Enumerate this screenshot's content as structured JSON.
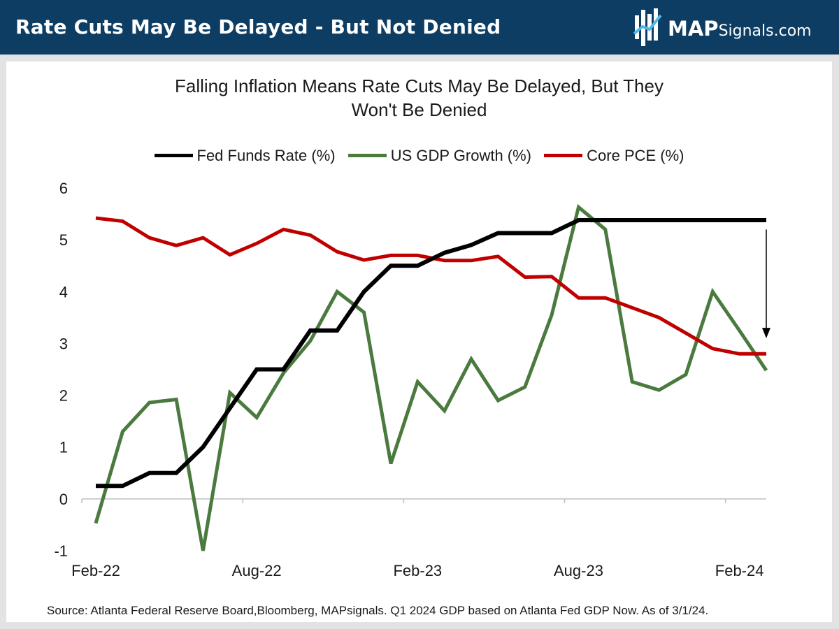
{
  "header": {
    "title": "Rate Cuts May Be Delayed - But Not Denied",
    "logo_bold": "MAP",
    "logo_rest": "Signals.com"
  },
  "chart_data": {
    "type": "line",
    "title": "Falling Inflation Means Rate Cuts May Be Delayed, But They Won't Be Denied",
    "title_lines": [
      "Falling Inflation Means Rate Cuts May Be Delayed, But They",
      "Won't Be Denied"
    ],
    "legend": "top-center",
    "x": [
      "Feb-22",
      "Mar-22",
      "Apr-22",
      "May-22",
      "Jun-22",
      "Jul-22",
      "Aug-22",
      "Sep-22",
      "Oct-22",
      "Nov-22",
      "Dec-22",
      "Jan-23",
      "Feb-23",
      "Mar-23",
      "Apr-23",
      "May-23",
      "Jun-23",
      "Jul-23",
      "Aug-23",
      "Sep-23",
      "Oct-23",
      "Nov-23",
      "Dec-23",
      "Jan-24",
      "Feb-24",
      "Mar-24"
    ],
    "x_tick_labels": [
      "Feb-22",
      "Aug-22",
      "Feb-23",
      "Aug-23",
      "Feb-24"
    ],
    "y_ticks": [
      "6",
      "5",
      "4",
      "3",
      "2",
      "1",
      "0",
      "-1"
    ],
    "ylim": [
      -1,
      6
    ],
    "series": [
      {
        "name": "Fed Funds Rate (%)",
        "color": "#000000",
        "values": [
          0.25,
          0.25,
          0.5,
          0.5,
          1.0,
          1.75,
          2.5,
          2.5,
          3.25,
          3.25,
          4.0,
          4.5,
          4.5,
          4.75,
          4.9,
          5.13,
          5.13,
          5.13,
          5.38,
          5.38,
          5.38,
          5.38,
          5.38,
          5.38,
          5.38,
          5.38
        ]
      },
      {
        "name": "US GDP Growth (%)",
        "color": "#4a7a3e",
        "values": [
          -0.47,
          1.3,
          1.86,
          1.92,
          -1.0,
          2.05,
          1.57,
          2.43,
          3.05,
          4.0,
          3.6,
          0.68,
          2.26,
          1.7,
          2.7,
          1.9,
          2.16,
          3.55,
          5.63,
          5.2,
          2.26,
          2.1,
          2.4,
          4.0,
          3.25,
          2.48
        ]
      },
      {
        "name": "Core PCE (%)",
        "color": "#c00000",
        "values": [
          5.42,
          5.36,
          5.04,
          4.89,
          5.04,
          4.71,
          4.93,
          5.2,
          5.09,
          4.77,
          4.61,
          4.7,
          4.7,
          4.6,
          4.6,
          4.68,
          4.28,
          4.29,
          3.88,
          3.88,
          3.69,
          3.5,
          3.2,
          2.9,
          2.8,
          2.8
        ]
      }
    ],
    "annotation": "down arrow at Mar-24 from 5.38 to 3.1"
  },
  "source": "Source: Atlanta Federal Reserve Board,Bloomberg, MAPsignals. Q1 2024 GDP based on Atlanta Fed GDP Now. As of 3/1/24."
}
